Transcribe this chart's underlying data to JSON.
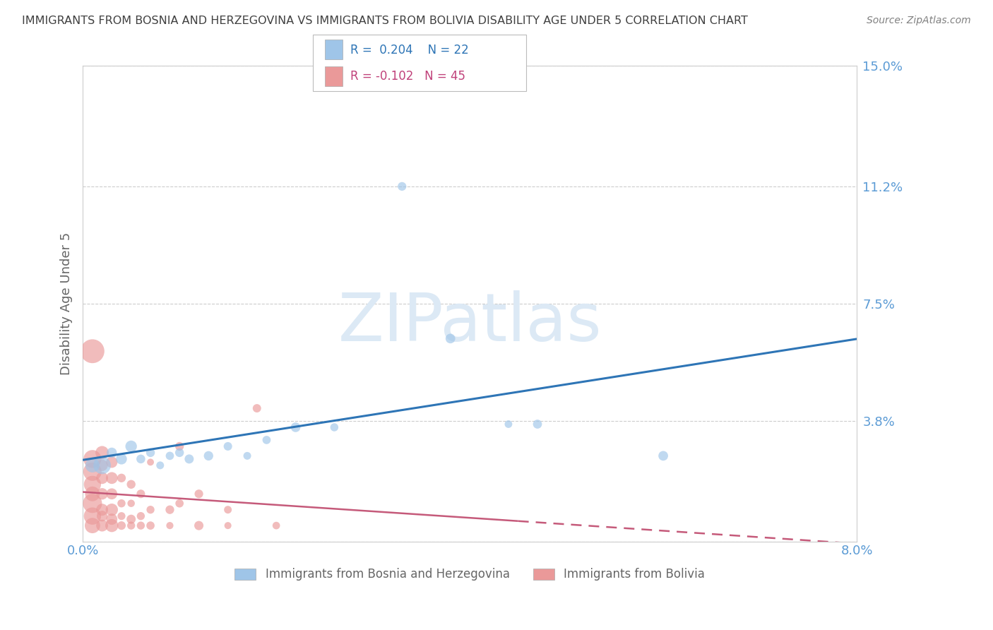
{
  "title": "IMMIGRANTS FROM BOSNIA AND HERZEGOVINA VS IMMIGRANTS FROM BOLIVIA DISABILITY AGE UNDER 5 CORRELATION CHART",
  "source": "Source: ZipAtlas.com",
  "ylabel": "Disability Age Under 5",
  "xlim": [
    0.0,
    0.08
  ],
  "ylim": [
    0.0,
    0.15
  ],
  "yticks": [
    0.0,
    0.038,
    0.075,
    0.112,
    0.15
  ],
  "ytick_labels": [
    "",
    "3.8%",
    "7.5%",
    "11.2%",
    "15.0%"
  ],
  "xticks": [
    0.0,
    0.01,
    0.02,
    0.03,
    0.04,
    0.05,
    0.06,
    0.07,
    0.08
  ],
  "xtick_labels": [
    "0.0%",
    "",
    "",
    "",
    "",
    "",
    "",
    "",
    "8.0%"
  ],
  "bosnia_color": "#9fc5e8",
  "bolivia_color": "#ea9999",
  "bosnia_line_color": "#2e75b6",
  "bolivia_line_color": "#c55a7a",
  "bosnia_R": 0.204,
  "bosnia_N": 22,
  "bolivia_R": -0.102,
  "bolivia_N": 45,
  "legend_bosnia_label": "Immigrants from Bosnia and Herzegovina",
  "legend_bolivia_label": "Immigrants from Bolivia",
  "bosnia_scatter": [
    [
      0.001,
      0.024
    ],
    [
      0.002,
      0.024
    ],
    [
      0.003,
      0.028
    ],
    [
      0.004,
      0.026
    ],
    [
      0.005,
      0.03
    ],
    [
      0.006,
      0.026
    ],
    [
      0.007,
      0.028
    ],
    [
      0.008,
      0.024
    ],
    [
      0.009,
      0.027
    ],
    [
      0.01,
      0.028
    ],
    [
      0.011,
      0.026
    ],
    [
      0.013,
      0.027
    ],
    [
      0.015,
      0.03
    ],
    [
      0.017,
      0.027
    ],
    [
      0.019,
      0.032
    ],
    [
      0.022,
      0.036
    ],
    [
      0.026,
      0.036
    ],
    [
      0.033,
      0.112
    ],
    [
      0.038,
      0.064
    ],
    [
      0.044,
      0.037
    ],
    [
      0.047,
      0.037
    ],
    [
      0.06,
      0.027
    ]
  ],
  "bolivia_scatter": [
    [
      0.001,
      0.005
    ],
    [
      0.001,
      0.008
    ],
    [
      0.001,
      0.012
    ],
    [
      0.001,
      0.015
    ],
    [
      0.001,
      0.018
    ],
    [
      0.001,
      0.022
    ],
    [
      0.001,
      0.026
    ],
    [
      0.002,
      0.005
    ],
    [
      0.002,
      0.008
    ],
    [
      0.002,
      0.01
    ],
    [
      0.002,
      0.015
    ],
    [
      0.002,
      0.02
    ],
    [
      0.002,
      0.024
    ],
    [
      0.002,
      0.028
    ],
    [
      0.003,
      0.005
    ],
    [
      0.003,
      0.007
    ],
    [
      0.003,
      0.01
    ],
    [
      0.003,
      0.015
    ],
    [
      0.003,
      0.02
    ],
    [
      0.003,
      0.025
    ],
    [
      0.004,
      0.005
    ],
    [
      0.004,
      0.008
    ],
    [
      0.004,
      0.012
    ],
    [
      0.004,
      0.02
    ],
    [
      0.005,
      0.005
    ],
    [
      0.005,
      0.007
    ],
    [
      0.005,
      0.012
    ],
    [
      0.005,
      0.018
    ],
    [
      0.006,
      0.005
    ],
    [
      0.006,
      0.008
    ],
    [
      0.006,
      0.015
    ],
    [
      0.007,
      0.005
    ],
    [
      0.007,
      0.01
    ],
    [
      0.007,
      0.025
    ],
    [
      0.009,
      0.005
    ],
    [
      0.009,
      0.01
    ],
    [
      0.01,
      0.012
    ],
    [
      0.01,
      0.03
    ],
    [
      0.012,
      0.005
    ],
    [
      0.012,
      0.015
    ],
    [
      0.015,
      0.005
    ],
    [
      0.015,
      0.01
    ],
    [
      0.018,
      0.042
    ],
    [
      0.02,
      0.005
    ],
    [
      0.001,
      0.06
    ]
  ],
  "bosnia_sizes": [
    80,
    80,
    80,
    80,
    80,
    80,
    80,
    80,
    80,
    80,
    80,
    80,
    80,
    80,
    80,
    80,
    80,
    80,
    80,
    80,
    80,
    80
  ],
  "bolivia_sizes_small": 60,
  "watermark_text": "ZIPatlas",
  "watermark_color": "#dce9f5",
  "background_color": "#ffffff",
  "grid_color": "#cccccc",
  "axis_label_color": "#666666",
  "tick_label_color": "#5b9bd5",
  "title_color": "#404040",
  "source_color": "#808080",
  "legend_box_color": "#f0f0f0",
  "legend_r_color": "#000000",
  "legend_val_color": "#2e75b6"
}
